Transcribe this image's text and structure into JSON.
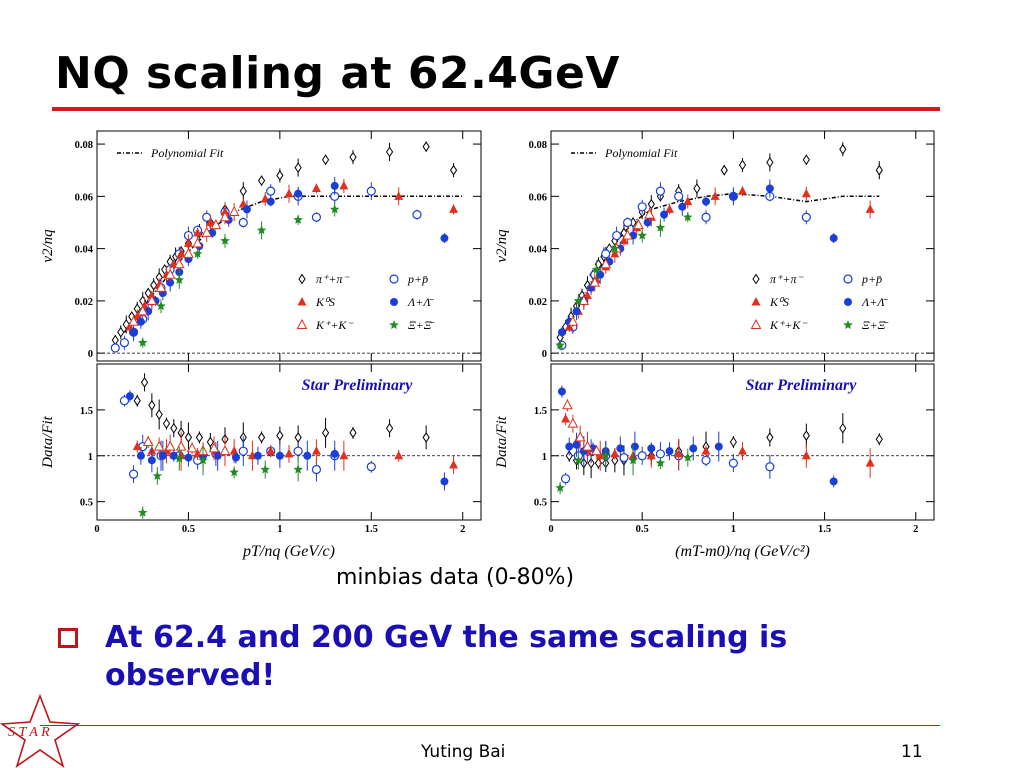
{
  "slide": {
    "title": "NQ scaling at 62.4GeV",
    "caption": "minbias data (0-80%)",
    "bullet": "At 62.4 and 200 GeV the same scaling is observed!",
    "author": "Yuting Bai",
    "page_number": "11",
    "logo_text": "S T A R",
    "accent_color": "#d11a1a",
    "bullet_color": "#1a0fb5"
  },
  "chart_data": [
    {
      "type": "scatter",
      "panel": "left-top",
      "ylabel": "v2/nq",
      "xlim": [
        0,
        2.1
      ],
      "ylim": [
        -0.003,
        0.085
      ],
      "yticks": [
        "0",
        "0.02",
        "0.04",
        "0.06",
        "0.08"
      ],
      "legend_fit": "Polynomial Fit",
      "legend": [
        "π⁺+π⁻",
        "p+p̄",
        "K⁰S",
        "Λ+Λ̄",
        "K⁺+K⁻",
        "Ξ+Ξ̄"
      ],
      "fit": {
        "x": [
          0.15,
          0.3,
          0.45,
          0.6,
          0.75,
          0.9,
          1.05,
          1.2,
          1.4,
          1.6,
          1.8,
          2.0
        ],
        "y": [
          0.008,
          0.022,
          0.035,
          0.046,
          0.054,
          0.058,
          0.06,
          0.06,
          0.06,
          0.06,
          0.06,
          0.06
        ]
      },
      "series": [
        {
          "name": "π⁺+π⁻",
          "marker": "diamond-open",
          "color": "#000000",
          "x": [
            0.1,
            0.13,
            0.16,
            0.19,
            0.22,
            0.25,
            0.28,
            0.31,
            0.34,
            0.37,
            0.4,
            0.43,
            0.46,
            0.5,
            0.56,
            0.62,
            0.7,
            0.8,
            0.9,
            1.0,
            1.1,
            1.25,
            1.4,
            1.6,
            1.8,
            1.95
          ],
          "y": [
            0.005,
            0.008,
            0.011,
            0.014,
            0.017,
            0.02,
            0.023,
            0.026,
            0.029,
            0.032,
            0.035,
            0.037,
            0.039,
            0.042,
            0.046,
            0.05,
            0.055,
            0.062,
            0.066,
            0.068,
            0.071,
            0.074,
            0.075,
            0.077,
            0.079,
            0.07
          ]
        },
        {
          "name": "p+p̄",
          "marker": "circle-open",
          "color": "#1a3fd6",
          "x": [
            0.1,
            0.15,
            0.2,
            0.25,
            0.3,
            0.35,
            0.4,
            0.45,
            0.5,
            0.55,
            0.6,
            0.7,
            0.8,
            0.95,
            1.1,
            1.2,
            1.3,
            1.5,
            1.75
          ],
          "y": [
            0.002,
            0.004,
            0.008,
            0.013,
            0.02,
            0.025,
            0.032,
            0.038,
            0.045,
            0.047,
            0.052,
            0.054,
            0.05,
            0.062,
            0.06,
            0.052,
            0.06,
            0.062,
            0.053
          ]
        },
        {
          "name": "K⁰S",
          "marker": "triangle-filled",
          "color": "#e0301e",
          "x": [
            0.18,
            0.22,
            0.26,
            0.3,
            0.34,
            0.38,
            0.42,
            0.46,
            0.5,
            0.55,
            0.62,
            0.7,
            0.8,
            0.92,
            1.05,
            1.2,
            1.35,
            1.65,
            1.95
          ],
          "y": [
            0.01,
            0.014,
            0.018,
            0.022,
            0.026,
            0.03,
            0.034,
            0.038,
            0.042,
            0.046,
            0.05,
            0.054,
            0.057,
            0.059,
            0.061,
            0.063,
            0.064,
            0.06,
            0.055
          ]
        },
        {
          "name": "Λ+Λ̄",
          "marker": "circle-filled",
          "color": "#1a3fd6",
          "x": [
            0.2,
            0.24,
            0.28,
            0.32,
            0.36,
            0.4,
            0.45,
            0.5,
            0.56,
            0.63,
            0.72,
            0.82,
            0.95,
            1.1,
            1.3,
            1.9
          ],
          "y": [
            0.008,
            0.012,
            0.016,
            0.02,
            0.023,
            0.027,
            0.031,
            0.036,
            0.041,
            0.046,
            0.051,
            0.055,
            0.058,
            0.061,
            0.064,
            0.044
          ]
        },
        {
          "name": "K⁺+K⁻",
          "marker": "triangle-open",
          "color": "#e0301e",
          "x": [
            0.2,
            0.25,
            0.3,
            0.35,
            0.4,
            0.45,
            0.5,
            0.55,
            0.6,
            0.65,
            0.7,
            0.75
          ],
          "y": [
            0.012,
            0.016,
            0.02,
            0.025,
            0.03,
            0.034,
            0.038,
            0.042,
            0.046,
            0.049,
            0.052,
            0.054
          ]
        },
        {
          "name": "Ξ+Ξ̄",
          "marker": "star",
          "color": "#228b22",
          "x": [
            0.25,
            0.35,
            0.45,
            0.55,
            0.7,
            0.9,
            1.1,
            1.3
          ],
          "y": [
            0.004,
            0.018,
            0.028,
            0.038,
            0.043,
            0.047,
            0.051,
            0.055
          ]
        }
      ]
    },
    {
      "type": "scatter",
      "panel": "left-bottom",
      "ylabel": "Data/Fit",
      "xlabel": "pT/nq (GeV/c)",
      "xlim": [
        0,
        2.1
      ],
      "ylim": [
        0.3,
        2.0
      ],
      "xticks": [
        "0",
        "0.5",
        "1",
        "1.5",
        "2"
      ],
      "yticks": [
        "0.5",
        "1",
        "1.5"
      ],
      "annotation": "Star Preliminary",
      "series": [
        {
          "name": "π⁺+π⁻",
          "marker": "diamond-open",
          "color": "#000000",
          "x": [
            0.22,
            0.26,
            0.3,
            0.34,
            0.38,
            0.42,
            0.46,
            0.5,
            0.56,
            0.62,
            0.7,
            0.8,
            0.9,
            1.0,
            1.1,
            1.25,
            1.4,
            1.6,
            1.8
          ],
          "y": [
            1.6,
            1.8,
            1.55,
            1.45,
            1.35,
            1.3,
            1.25,
            1.2,
            1.2,
            1.15,
            1.18,
            1.2,
            1.2,
            1.22,
            1.2,
            1.25,
            1.25,
            1.3,
            1.2
          ]
        },
        {
          "name": "p+p̄",
          "marker": "circle-open",
          "color": "#1a3fd6",
          "x": [
            0.15,
            0.2,
            0.25,
            0.35,
            0.45,
            0.55,
            0.65,
            0.8,
            0.95,
            1.1,
            1.2,
            1.3,
            1.5
          ],
          "y": [
            1.6,
            0.8,
            1.1,
            1.0,
            1.0,
            0.95,
            1.02,
            1.05,
            1.05,
            1.05,
            0.85,
            1.0,
            0.88
          ]
        },
        {
          "name": "K⁰S",
          "marker": "triangle-filled",
          "color": "#e0301e",
          "x": [
            0.22,
            0.3,
            0.38,
            0.46,
            0.55,
            0.65,
            0.75,
            0.85,
            0.95,
            1.05,
            1.2,
            1.35,
            1.65,
            1.95
          ],
          "y": [
            1.1,
            1.05,
            1.05,
            1.0,
            1.02,
            1.05,
            1.05,
            1.0,
            1.05,
            1.02,
            1.05,
            1.0,
            1.0,
            0.9
          ]
        },
        {
          "name": "Λ+Λ̄",
          "marker": "circle-filled",
          "color": "#1a3fd6",
          "x": [
            0.18,
            0.24,
            0.3,
            0.36,
            0.42,
            0.5,
            0.58,
            0.66,
            0.76,
            0.88,
            1.0,
            1.15,
            1.3,
            1.9
          ],
          "y": [
            1.65,
            1.0,
            0.95,
            1.0,
            1.0,
            0.98,
            1.0,
            1.0,
            0.98,
            1.0,
            1.0,
            1.0,
            1.02,
            0.72
          ]
        },
        {
          "name": "K⁺+K⁻",
          "marker": "triangle-open",
          "color": "#e0301e",
          "x": [
            0.28,
            0.34,
            0.4,
            0.46,
            0.52,
            0.58,
            0.64,
            0.7
          ],
          "y": [
            1.15,
            1.1,
            1.1,
            1.1,
            1.08,
            1.05,
            1.08,
            1.05
          ]
        },
        {
          "name": "Ξ+Ξ̄",
          "marker": "star",
          "color": "#228b22",
          "x": [
            0.25,
            0.33,
            0.45,
            0.58,
            0.75,
            0.92,
            1.1
          ],
          "y": [
            0.38,
            0.78,
            0.97,
            0.95,
            0.82,
            0.85,
            0.85
          ]
        }
      ]
    },
    {
      "type": "scatter",
      "panel": "right-top",
      "ylabel": "v2/nq",
      "xlim": [
        0,
        2.1
      ],
      "ylim": [
        -0.003,
        0.085
      ],
      "yticks": [
        "0",
        "0.02",
        "0.04",
        "0.06",
        "0.08"
      ],
      "legend_fit": "Polynomial Fit",
      "legend": [
        "π⁺+π⁻",
        "p+p̄",
        "K⁰S",
        "Λ+Λ̄",
        "K⁺+K⁻",
        "Ξ+Ξ̄"
      ],
      "fit": {
        "x": [
          0.05,
          0.15,
          0.25,
          0.35,
          0.45,
          0.55,
          0.7,
          0.85,
          1.0,
          1.2,
          1.4,
          1.6,
          1.8
        ],
        "y": [
          0.006,
          0.018,
          0.03,
          0.042,
          0.05,
          0.055,
          0.058,
          0.06,
          0.061,
          0.06,
          0.058,
          0.06,
          0.06
        ]
      },
      "series": [
        {
          "name": "π⁺+π⁻",
          "marker": "diamond-open",
          "color": "#000000",
          "x": [
            0.05,
            0.08,
            0.11,
            0.14,
            0.17,
            0.2,
            0.23,
            0.26,
            0.29,
            0.32,
            0.35,
            0.4,
            0.45,
            0.5,
            0.55,
            0.6,
            0.7,
            0.8,
            0.95,
            1.05,
            1.2,
            1.4,
            1.6,
            1.8
          ],
          "y": [
            0.006,
            0.01,
            0.014,
            0.018,
            0.022,
            0.026,
            0.03,
            0.034,
            0.037,
            0.04,
            0.043,
            0.046,
            0.05,
            0.054,
            0.057,
            0.06,
            0.062,
            0.063,
            0.07,
            0.072,
            0.073,
            0.074,
            0.078,
            0.07
          ]
        },
        {
          "name": "p+p̄",
          "marker": "circle-open",
          "color": "#1a3fd6",
          "x": [
            0.06,
            0.12,
            0.18,
            0.24,
            0.3,
            0.36,
            0.42,
            0.5,
            0.6,
            0.7,
            0.85,
            1.0,
            1.2,
            1.4
          ],
          "y": [
            0.003,
            0.01,
            0.02,
            0.03,
            0.038,
            0.045,
            0.05,
            0.056,
            0.062,
            0.06,
            0.052,
            0.06,
            0.06,
            0.052
          ]
        },
        {
          "name": "K⁰S",
          "marker": "triangle-filled",
          "color": "#e0301e",
          "x": [
            0.1,
            0.15,
            0.2,
            0.25,
            0.3,
            0.35,
            0.4,
            0.47,
            0.55,
            0.65,
            0.75,
            0.9,
            1.05,
            1.4,
            1.75
          ],
          "y": [
            0.01,
            0.016,
            0.022,
            0.028,
            0.033,
            0.038,
            0.043,
            0.048,
            0.052,
            0.055,
            0.058,
            0.06,
            0.062,
            0.061,
            0.055
          ]
        },
        {
          "name": "Λ+Λ̄",
          "marker": "circle-filled",
          "color": "#1a3fd6",
          "x": [
            0.06,
            0.1,
            0.14,
            0.18,
            0.22,
            0.27,
            0.32,
            0.38,
            0.45,
            0.53,
            0.62,
            0.72,
            0.85,
            1.0,
            1.2,
            1.55
          ],
          "y": [
            0.008,
            0.012,
            0.016,
            0.02,
            0.025,
            0.03,
            0.035,
            0.04,
            0.045,
            0.05,
            0.053,
            0.056,
            0.058,
            0.06,
            0.063,
            0.044
          ]
        },
        {
          "name": "K⁺+K⁻",
          "marker": "triangle-open",
          "color": "#e0301e",
          "x": [
            0.12,
            0.18,
            0.24,
            0.3,
            0.36,
            0.42,
            0.48,
            0.54
          ],
          "y": [
            0.012,
            0.02,
            0.027,
            0.034,
            0.04,
            0.045,
            0.049,
            0.053
          ]
        },
        {
          "name": "Ξ+Ξ̄",
          "marker": "star",
          "color": "#228b22",
          "x": [
            0.05,
            0.15,
            0.25,
            0.35,
            0.5,
            0.6,
            0.75
          ],
          "y": [
            0.003,
            0.02,
            0.032,
            0.04,
            0.045,
            0.048,
            0.052
          ]
        }
      ]
    },
    {
      "type": "scatter",
      "panel": "right-bottom",
      "ylabel": "Data/Fit",
      "xlabel": "(mT-m0)/nq (GeV/c²)",
      "xlim": [
        0,
        2.1
      ],
      "ylim": [
        0.3,
        2.0
      ],
      "xticks": [
        "0",
        "0.5",
        "1",
        "1.5",
        "2"
      ],
      "yticks": [
        "0.5",
        "1",
        "1.5"
      ],
      "annotation": "Star Preliminary",
      "series": [
        {
          "name": "π⁺+π⁻",
          "marker": "diamond-open",
          "color": "#000000",
          "x": [
            0.1,
            0.14,
            0.18,
            0.22,
            0.26,
            0.3,
            0.35,
            0.4,
            0.45,
            0.55,
            0.7,
            0.85,
            1.0,
            1.2,
            1.4,
            1.6,
            1.8
          ],
          "y": [
            1.0,
            0.95,
            0.92,
            0.92,
            0.92,
            0.92,
            0.95,
            0.95,
            0.98,
            1.0,
            1.05,
            1.1,
            1.15,
            1.2,
            1.22,
            1.3,
            1.18
          ]
        },
        {
          "name": "p+p̄",
          "marker": "circle-open",
          "color": "#1a3fd6",
          "x": [
            0.08,
            0.15,
            0.22,
            0.3,
            0.4,
            0.5,
            0.6,
            0.7,
            0.85,
            1.0,
            1.2
          ],
          "y": [
            0.75,
            1.0,
            1.05,
            1.0,
            0.98,
            1.0,
            1.02,
            1.0,
            0.95,
            0.92,
            0.88
          ]
        },
        {
          "name": "K⁰S",
          "marker": "triangle-filled",
          "color": "#e0301e",
          "x": [
            0.08,
            0.14,
            0.2,
            0.27,
            0.35,
            0.45,
            0.55,
            0.7,
            0.85,
            1.05,
            1.4,
            1.75
          ],
          "y": [
            1.4,
            1.15,
            1.05,
            1.0,
            1.02,
            1.0,
            1.0,
            1.02,
            1.05,
            1.05,
            1.0,
            0.92
          ]
        },
        {
          "name": "Λ+Λ̄",
          "marker": "circle-filled",
          "color": "#1a3fd6",
          "x": [
            0.06,
            0.1,
            0.14,
            0.18,
            0.23,
            0.3,
            0.38,
            0.46,
            0.55,
            0.65,
            0.78,
            0.92,
            1.55
          ],
          "y": [
            1.7,
            1.1,
            1.12,
            1.05,
            1.08,
            1.05,
            1.08,
            1.1,
            1.08,
            1.05,
            1.08,
            1.1,
            0.72
          ]
        },
        {
          "name": "K⁺+K⁻",
          "marker": "triangle-open",
          "color": "#e0301e",
          "x": [
            0.09,
            0.12,
            0.16,
            0.2,
            0.25
          ],
          "y": [
            1.55,
            1.35,
            1.2,
            1.1,
            1.05
          ]
        },
        {
          "name": "Ξ+Ξ̄",
          "marker": "star",
          "color": "#228b22",
          "x": [
            0.05,
            0.15,
            0.3,
            0.45,
            0.6,
            0.75
          ],
          "y": [
            0.65,
            0.95,
            1.0,
            0.95,
            0.92,
            0.98
          ]
        }
      ]
    }
  ]
}
